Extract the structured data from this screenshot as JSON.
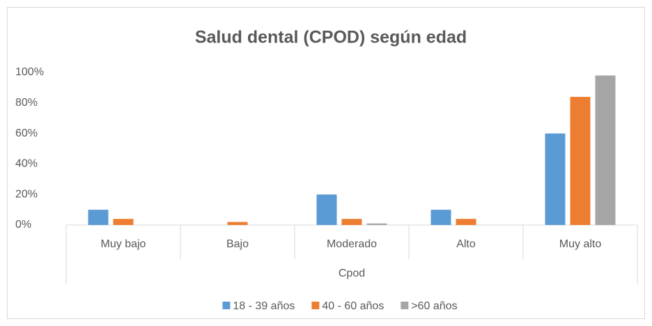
{
  "chart_data": {
    "type": "bar",
    "title": "Salud dental (CPOD) según edad",
    "x_label": "Cpod",
    "categories": [
      "Muy bajo",
      "Bajo",
      "Moderado",
      "Alto",
      "Muy alto"
    ],
    "series": [
      {
        "name": "18 - 39 años",
        "color": "#5b9bd5",
        "values": [
          10,
          0,
          20,
          10,
          60
        ]
      },
      {
        "name": "40 - 60 años",
        "color": "#ed7d31",
        "values": [
          4,
          2,
          4,
          4,
          84
        ]
      },
      {
        "name": ">60 años",
        "color": "#a5a5a5",
        "values": [
          0,
          0,
          1,
          0,
          98
        ]
      }
    ],
    "ylim": [
      0,
      100
    ],
    "yticks": [
      {
        "value": 0,
        "label": "0%"
      },
      {
        "value": 20,
        "label": "20%"
      },
      {
        "value": 40,
        "label": "40%"
      },
      {
        "value": 60,
        "label": "60%"
      },
      {
        "value": 80,
        "label": "80%"
      },
      {
        "value": 100,
        "label": "100%"
      }
    ],
    "grid": false,
    "legend": "bottom"
  }
}
